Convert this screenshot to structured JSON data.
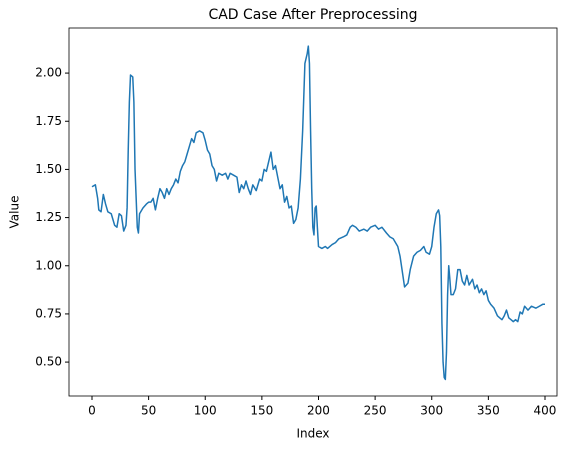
{
  "chart_data": {
    "type": "line",
    "title": "CAD Case After Preprocessing",
    "xlabel": "Index",
    "ylabel": "Value",
    "color": "#1f77b4",
    "grid": false,
    "x": [
      0,
      3,
      5,
      6,
      8,
      10,
      12,
      14,
      17,
      20,
      22,
      24,
      26,
      28,
      30,
      31,
      32,
      33,
      34,
      36,
      37,
      38,
      40,
      41,
      42,
      45,
      48,
      50,
      52,
      54,
      56,
      58,
      60,
      62,
      64,
      66,
      68,
      70,
      72,
      74,
      76,
      78,
      80,
      82,
      84,
      86,
      88,
      90,
      92,
      95,
      98,
      100,
      102,
      104,
      106,
      108,
      110,
      112,
      115,
      118,
      120,
      122,
      125,
      128,
      130,
      132,
      134,
      136,
      138,
      140,
      142,
      145,
      148,
      150,
      152,
      154,
      156,
      158,
      160,
      162,
      164,
      166,
      168,
      170,
      172,
      174,
      176,
      178,
      180,
      182,
      184,
      186,
      188,
      190,
      191,
      192,
      193,
      194,
      195,
      196,
      197,
      198,
      199,
      200,
      203,
      206,
      208,
      212,
      215,
      218,
      222,
      225,
      228,
      230,
      233,
      236,
      240,
      243,
      246,
      250,
      253,
      256,
      260,
      263,
      266,
      270,
      272,
      274,
      276,
      279,
      281,
      284,
      287,
      290,
      293,
      295,
      298,
      300,
      302,
      304,
      306,
      307,
      308,
      309,
      310,
      311,
      312,
      313,
      314,
      315,
      316,
      317,
      319,
      321,
      323,
      325,
      327,
      329,
      331,
      333,
      336,
      338,
      340,
      342,
      344,
      346,
      348,
      350,
      352,
      355,
      358,
      360,
      362,
      364,
      366,
      368,
      370,
      372,
      374,
      376,
      378,
      380,
      382,
      385,
      388,
      392,
      395,
      398,
      400
    ],
    "values": [
      1.41,
      1.42,
      1.35,
      1.29,
      1.28,
      1.37,
      1.32,
      1.28,
      1.27,
      1.21,
      1.2,
      1.27,
      1.26,
      1.18,
      1.21,
      1.3,
      1.6,
      1.85,
      1.99,
      1.98,
      1.85,
      1.5,
      1.2,
      1.17,
      1.27,
      1.3,
      1.32,
      1.33,
      1.33,
      1.35,
      1.29,
      1.35,
      1.4,
      1.38,
      1.35,
      1.4,
      1.37,
      1.4,
      1.42,
      1.45,
      1.43,
      1.49,
      1.52,
      1.54,
      1.58,
      1.62,
      1.66,
      1.64,
      1.69,
      1.7,
      1.69,
      1.65,
      1.6,
      1.58,
      1.52,
      1.5,
      1.44,
      1.48,
      1.47,
      1.48,
      1.45,
      1.48,
      1.47,
      1.46,
      1.38,
      1.42,
      1.4,
      1.44,
      1.4,
      1.37,
      1.42,
      1.39,
      1.45,
      1.44,
      1.5,
      1.49,
      1.54,
      1.59,
      1.5,
      1.52,
      1.46,
      1.4,
      1.42,
      1.33,
      1.36,
      1.3,
      1.31,
      1.22,
      1.24,
      1.3,
      1.45,
      1.7,
      2.05,
      2.1,
      2.14,
      2.05,
      1.7,
      1.4,
      1.2,
      1.16,
      1.3,
      1.31,
      1.2,
      1.1,
      1.09,
      1.1,
      1.09,
      1.11,
      1.12,
      1.14,
      1.15,
      1.16,
      1.2,
      1.21,
      1.2,
      1.18,
      1.19,
      1.18,
      1.2,
      1.21,
      1.19,
      1.2,
      1.17,
      1.15,
      1.14,
      1.1,
      1.05,
      0.97,
      0.89,
      0.91,
      0.98,
      1.05,
      1.07,
      1.08,
      1.1,
      1.07,
      1.06,
      1.1,
      1.2,
      1.27,
      1.29,
      1.26,
      1.1,
      0.7,
      0.5,
      0.42,
      0.41,
      0.55,
      0.85,
      1.0,
      0.93,
      0.85,
      0.85,
      0.88,
      0.98,
      0.98,
      0.92,
      0.9,
      0.95,
      0.9,
      0.93,
      0.88,
      0.9,
      0.86,
      0.88,
      0.85,
      0.87,
      0.82,
      0.8,
      0.78,
      0.74,
      0.73,
      0.72,
      0.74,
      0.77,
      0.73,
      0.72,
      0.71,
      0.72,
      0.71,
      0.76,
      0.75,
      0.79,
      0.77,
      0.79,
      0.78,
      0.79,
      0.8,
      0.8
    ],
    "xlim": [
      -20.3,
      410.6
    ],
    "xticks": [
      0,
      50,
      100,
      150,
      200,
      250,
      300,
      350,
      400
    ],
    "ylim": [
      0.324,
      2.234
    ],
    "yticks": [
      {
        "value": 0.5,
        "label": "0.50"
      },
      {
        "value": 0.75,
        "label": "0.75"
      },
      {
        "value": 1.0,
        "label": "1.00"
      },
      {
        "value": 1.25,
        "label": "1.25"
      },
      {
        "value": 1.5,
        "label": "1.50"
      },
      {
        "value": 1.75,
        "label": "1.75"
      },
      {
        "value": 2.0,
        "label": "2.00"
      }
    ]
  }
}
